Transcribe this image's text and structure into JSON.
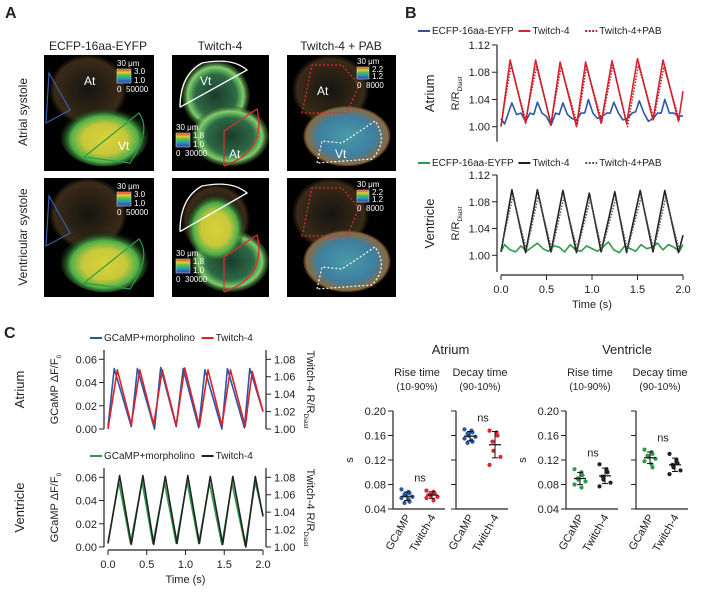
{
  "panels": {
    "a": "A",
    "b": "B",
    "c": "C"
  },
  "panel_a": {
    "columns": [
      "ECFP-16aa-EYFP",
      "Twitch-4",
      "Twitch-4 + PAB"
    ],
    "rows": [
      "Atrial systole",
      "Ventricular systole"
    ],
    "region_labels": {
      "atrium": "At",
      "ventricle": "Vt"
    },
    "scale_bar": "30 μm",
    "colorbars": [
      {
        "ratio_max": "3.0",
        "ratio_min": "1.0",
        "intensity_min": "0",
        "intensity_max": "50000"
      },
      {
        "ratio_max": "1.8",
        "ratio_min": "1.0",
        "intensity_min": "0",
        "intensity_max": "30000"
      },
      {
        "ratio_max": "2.2",
        "ratio_min": "1.2",
        "intensity_min": "0",
        "intensity_max": "8000"
      }
    ],
    "roi_colors": {
      "ecfp_atrium": "#3b5fa8",
      "ecfp_ventricle": "#2e9b48",
      "twitch_ventricle": "#ffffff",
      "twitch_atrium": "#d9302f",
      "pab_atrium": "#d9302f",
      "pab_ventricle": "#ffffff"
    }
  },
  "chart_data": [
    {
      "id": "b_atrium",
      "type": "line",
      "row_label": "Atrium",
      "ylabel": "R/R",
      "ylabel_sub": "Diast",
      "ylim": [
        0.978,
        1.12
      ],
      "xlim": [
        0,
        2
      ],
      "yticks": [
        "1.00",
        "1.04",
        "1.08",
        "1.12"
      ],
      "xticks": [],
      "series": [
        {
          "name": "ECFP-16aa-EYFP",
          "color": "#2b57a5",
          "style": "solid",
          "x": [
            0,
            0.04,
            0.08,
            0.12,
            0.17,
            0.22,
            0.27,
            0.32,
            0.36,
            0.4,
            0.45,
            0.5,
            0.55,
            0.6,
            0.64,
            0.68,
            0.73,
            0.78,
            0.83,
            0.88,
            0.92,
            0.96,
            1.01,
            1.06,
            1.11,
            1.16,
            1.2,
            1.24,
            1.29,
            1.34,
            1.39,
            1.44,
            1.48,
            1.52,
            1.57,
            1.62,
            1.67,
            1.72,
            1.76,
            1.8,
            1.85,
            1.9,
            1.95,
            2.0
          ],
          "y": [
            1.012,
            1.004,
            1.02,
            1.035,
            1.018,
            1.02,
            1.008,
            1.02,
            1.018,
            1.036,
            1.02,
            1.015,
            1.002,
            1.02,
            1.018,
            1.035,
            1.018,
            1.012,
            1.01,
            1.02,
            1.02,
            1.04,
            1.02,
            1.012,
            1.015,
            1.02,
            1.02,
            1.036,
            1.02,
            1.01,
            1.012,
            1.02,
            1.022,
            1.038,
            1.02,
            1.008,
            1.012,
            1.02,
            1.02,
            1.04,
            1.02,
            1.02,
            1.015,
            1.016
          ]
        },
        {
          "name": "Twitch-4",
          "color": "#d9232e",
          "style": "solid",
          "x": [
            0,
            0.1,
            0.27,
            0.38,
            0.55,
            0.65,
            0.83,
            0.93,
            1.1,
            1.22,
            1.38,
            1.5,
            1.67,
            1.78,
            1.95,
            2.0
          ],
          "y": [
            1.0,
            1.098,
            1.005,
            1.098,
            1.003,
            1.095,
            1.0,
            1.095,
            1.005,
            1.097,
            1.005,
            1.1,
            1.01,
            1.098,
            1.008,
            1.052
          ]
        },
        {
          "name": "Twitch-4+PAB",
          "color": "#b01c25",
          "style": "dotted",
          "x": [
            0,
            0.11,
            0.27,
            0.39,
            0.55,
            0.66,
            0.84,
            0.94,
            1.11,
            1.23,
            1.39,
            1.51,
            1.68,
            1.79,
            1.96
          ],
          "y": [
            1.002,
            1.09,
            1.01,
            1.088,
            1.005,
            1.088,
            1.003,
            1.088,
            1.008,
            1.09,
            1.0,
            1.09,
            1.012,
            1.088,
            1.01
          ]
        }
      ]
    },
    {
      "id": "b_ventricle",
      "type": "line",
      "row_label": "Ventricle",
      "ylabel": "R/R",
      "ylabel_sub": "Diast",
      "xlabel": "Time (s)",
      "ylim": [
        0.975,
        1.12
      ],
      "xlim": [
        0,
        2
      ],
      "yticks": [
        "1.00",
        "1.04",
        "1.08",
        "1.12"
      ],
      "xticks": [
        "0.0",
        "0.5",
        "1.0",
        "1.5",
        "2.0"
      ],
      "series": [
        {
          "name": "ECFP-16aa-EYFP",
          "color": "#2e9b48",
          "style": "solid",
          "x": [
            0,
            0.04,
            0.1,
            0.16,
            0.22,
            0.28,
            0.34,
            0.4,
            0.46,
            0.52,
            0.58,
            0.64,
            0.7,
            0.76,
            0.82,
            0.88,
            0.94,
            1.0,
            1.06,
            1.12,
            1.18,
            1.24,
            1.3,
            1.36,
            1.42,
            1.48,
            1.54,
            1.6,
            1.66,
            1.72,
            1.78,
            1.84,
            1.9,
            1.96,
            2.0
          ],
          "y": [
            1.006,
            1.016,
            1.008,
            1.005,
            1.014,
            1.006,
            1.012,
            1.018,
            1.01,
            1.006,
            1.014,
            1.012,
            1.005,
            1.016,
            1.008,
            1.006,
            1.014,
            1.01,
            1.006,
            1.012,
            1.02,
            1.008,
            1.004,
            1.014,
            1.01,
            1.006,
            1.016,
            1.01,
            1.012,
            1.018,
            1.008,
            1.016,
            1.012,
            1.006,
            1.016
          ]
        },
        {
          "name": "Twitch-4",
          "color": "#222222",
          "style": "solid",
          "x": [
            0,
            0.12,
            0.27,
            0.4,
            0.55,
            0.68,
            0.83,
            0.97,
            1.1,
            1.25,
            1.38,
            1.53,
            1.67,
            1.8,
            1.95,
            2.0
          ],
          "y": [
            1.005,
            1.098,
            1.004,
            1.098,
            1.005,
            1.097,
            1.004,
            1.093,
            1.005,
            1.095,
            1.004,
            1.097,
            1.005,
            1.097,
            1.004,
            1.03
          ]
        },
        {
          "name": "Twitch-4+PAB",
          "color": "#555555",
          "style": "dotted",
          "x": [
            0,
            0.13,
            0.28,
            0.41,
            0.56,
            0.69,
            0.84,
            0.98,
            1.11,
            1.26,
            1.39,
            1.54,
            1.68,
            1.81,
            1.96
          ],
          "y": [
            1.008,
            1.088,
            1.008,
            1.088,
            1.008,
            1.086,
            1.008,
            1.084,
            1.008,
            1.085,
            1.008,
            1.087,
            1.008,
            1.086,
            1.008
          ]
        }
      ]
    },
    {
      "id": "c_atrium",
      "type": "line",
      "row_label": "Atrium",
      "ylabel": "GCaMP ΔF/F",
      "ylabel_sub": "0",
      "y2label": "Twitch-4 R/R",
      "y2label_sub": "Diast",
      "ylim": [
        0,
        0.068
      ],
      "y2lim": [
        1.0,
        1.0907
      ],
      "xlim": [
        0,
        2
      ],
      "yticks": [
        "0.00",
        "0.02",
        "0.04",
        "0.06"
      ],
      "y2ticks": [
        "1.00",
        "1.02",
        "1.04",
        "1.06",
        "1.08"
      ],
      "xticks": [],
      "series": [
        {
          "name": "GCaMP+morpholino",
          "color": "#2b57a5",
          "axis": "left",
          "x": [
            0,
            0.08,
            0.3,
            0.38,
            0.6,
            0.68,
            0.88,
            0.97,
            1.17,
            1.25,
            1.47,
            1.54,
            1.76,
            1.83,
            2.0
          ],
          "y": [
            0.002,
            0.052,
            0.002,
            0.052,
            0.0,
            0.053,
            0.002,
            0.052,
            0.001,
            0.051,
            0.0,
            0.052,
            0.001,
            0.052,
            0.015
          ]
        },
        {
          "name": "Twitch-4",
          "color": "#d9232e",
          "axis": "right",
          "x": [
            0,
            0.12,
            0.3,
            0.41,
            0.59,
            0.7,
            0.88,
            0.99,
            1.18,
            1.29,
            1.47,
            1.58,
            1.77,
            1.86,
            2.0
          ],
          "y": [
            1.0,
            1.068,
            1.005,
            1.068,
            1.005,
            1.068,
            1.004,
            1.07,
            1.003,
            1.068,
            1.004,
            1.068,
            1.003,
            1.066,
            1.02
          ]
        }
      ]
    },
    {
      "id": "c_ventricle",
      "type": "line",
      "row_label": "Ventricle",
      "ylabel": "GCaMP ΔF/F",
      "ylabel_sub": "0",
      "y2label": "Twitch-4 R/R",
      "y2label_sub": "Diast",
      "xlabel": "Time (s)",
      "ylim": [
        0,
        0.068
      ],
      "y2lim": [
        1.0,
        1.0907
      ],
      "xlim": [
        0,
        2
      ],
      "yticks": [
        "0.00",
        "0.02",
        "0.04",
        "0.06"
      ],
      "y2ticks": [
        "1.00",
        "1.02",
        "1.04",
        "1.06",
        "1.08"
      ],
      "xticks": [
        "0.0",
        "0.5",
        "1.0",
        "1.5",
        "2.0"
      ],
      "series": [
        {
          "name": "GCaMP+morpholino",
          "color": "#2e9b48",
          "axis": "left",
          "x": [
            0,
            0.14,
            0.29,
            0.44,
            0.58,
            0.73,
            0.88,
            1.02,
            1.17,
            1.31,
            1.47,
            1.6,
            1.77,
            1.9,
            2.0
          ],
          "y": [
            0.004,
            0.056,
            0.003,
            0.056,
            0.003,
            0.055,
            0.003,
            0.056,
            0.003,
            0.055,
            0.002,
            0.055,
            0.001,
            0.056,
            0.027
          ]
        },
        {
          "name": "Twitch-4",
          "color": "#222222",
          "axis": "right",
          "x": [
            0,
            0.15,
            0.3,
            0.45,
            0.59,
            0.74,
            0.89,
            1.03,
            1.18,
            1.32,
            1.48,
            1.61,
            1.78,
            1.9,
            2.0
          ],
          "y": [
            1.004,
            1.082,
            1.003,
            1.082,
            1.003,
            1.081,
            1.004,
            1.082,
            1.004,
            1.081,
            1.003,
            1.081,
            1.0,
            1.081,
            1.035
          ]
        }
      ]
    },
    {
      "id": "c_kinetics",
      "type": "scatter",
      "ylabel": "s",
      "ylim": [
        0.04,
        0.2
      ],
      "yticks": [
        "0.04",
        "0.08",
        "0.12",
        "0.16",
        "0.20"
      ],
      "groups": [
        {
          "title": "Atrium",
          "panels": [
            {
              "title": "Rise time",
              "subtitle": "(10-90%)",
              "annotation": "ns",
              "categories": [
                "GCaMP",
                "Twitch-4"
              ],
              "colors": [
                "#2b57a5",
                "#d9232e"
              ],
              "values": [
                [
                  0.072,
                  0.068,
                  0.066,
                  0.064,
                  0.062,
                  0.06,
                  0.058,
                  0.056,
                  0.052,
                  0.05
                ],
                [
                  0.07,
                  0.068,
                  0.066,
                  0.064,
                  0.062,
                  0.06,
                  0.058,
                  0.054
                ]
              ]
            },
            {
              "title": "Decay time",
              "subtitle": "(90-10%)",
              "annotation": "ns",
              "categories": [
                "GCaMP",
                "Twitch-4"
              ],
              "colors": [
                "#2b57a5",
                "#d9232e"
              ],
              "values": [
                [
                  0.17,
                  0.168,
                  0.165,
                  0.163,
                  0.16,
                  0.158,
                  0.155,
                  0.152,
                  0.15,
                  0.148
                ],
                [
                  0.168,
                  0.165,
                  0.16,
                  0.15,
                  0.135,
                  0.125,
                  0.112
                ]
              ]
            }
          ]
        },
        {
          "title": "Ventricle",
          "panels": [
            {
              "title": "Rise time",
              "subtitle": "(10-90%)",
              "annotation": "ns",
              "categories": [
                "GCaMP",
                "Twitch-4"
              ],
              "colors": [
                "#2e9b48",
                "#222222"
              ],
              "values": [
                [
                  0.105,
                  0.1,
                  0.095,
                  0.09,
                  0.088,
                  0.085,
                  0.08,
                  0.075
                ],
                [
                  0.113,
                  0.105,
                  0.1,
                  0.093,
                  0.088,
                  0.083,
                  0.077
                ]
              ]
            },
            {
              "title": "Decay time",
              "subtitle": "(90-10%)",
              "annotation": "ns",
              "categories": [
                "GCaMP",
                "Twitch-4"
              ],
              "colors": [
                "#2e9b48",
                "#222222"
              ],
              "values": [
                [
                  0.137,
                  0.133,
                  0.13,
                  0.127,
                  0.125,
                  0.122,
                  0.118,
                  0.113,
                  0.108
                ],
                [
                  0.13,
                  0.12,
                  0.115,
                  0.112,
                  0.108,
                  0.103,
                  0.097
                ]
              ]
            }
          ]
        }
      ]
    }
  ]
}
